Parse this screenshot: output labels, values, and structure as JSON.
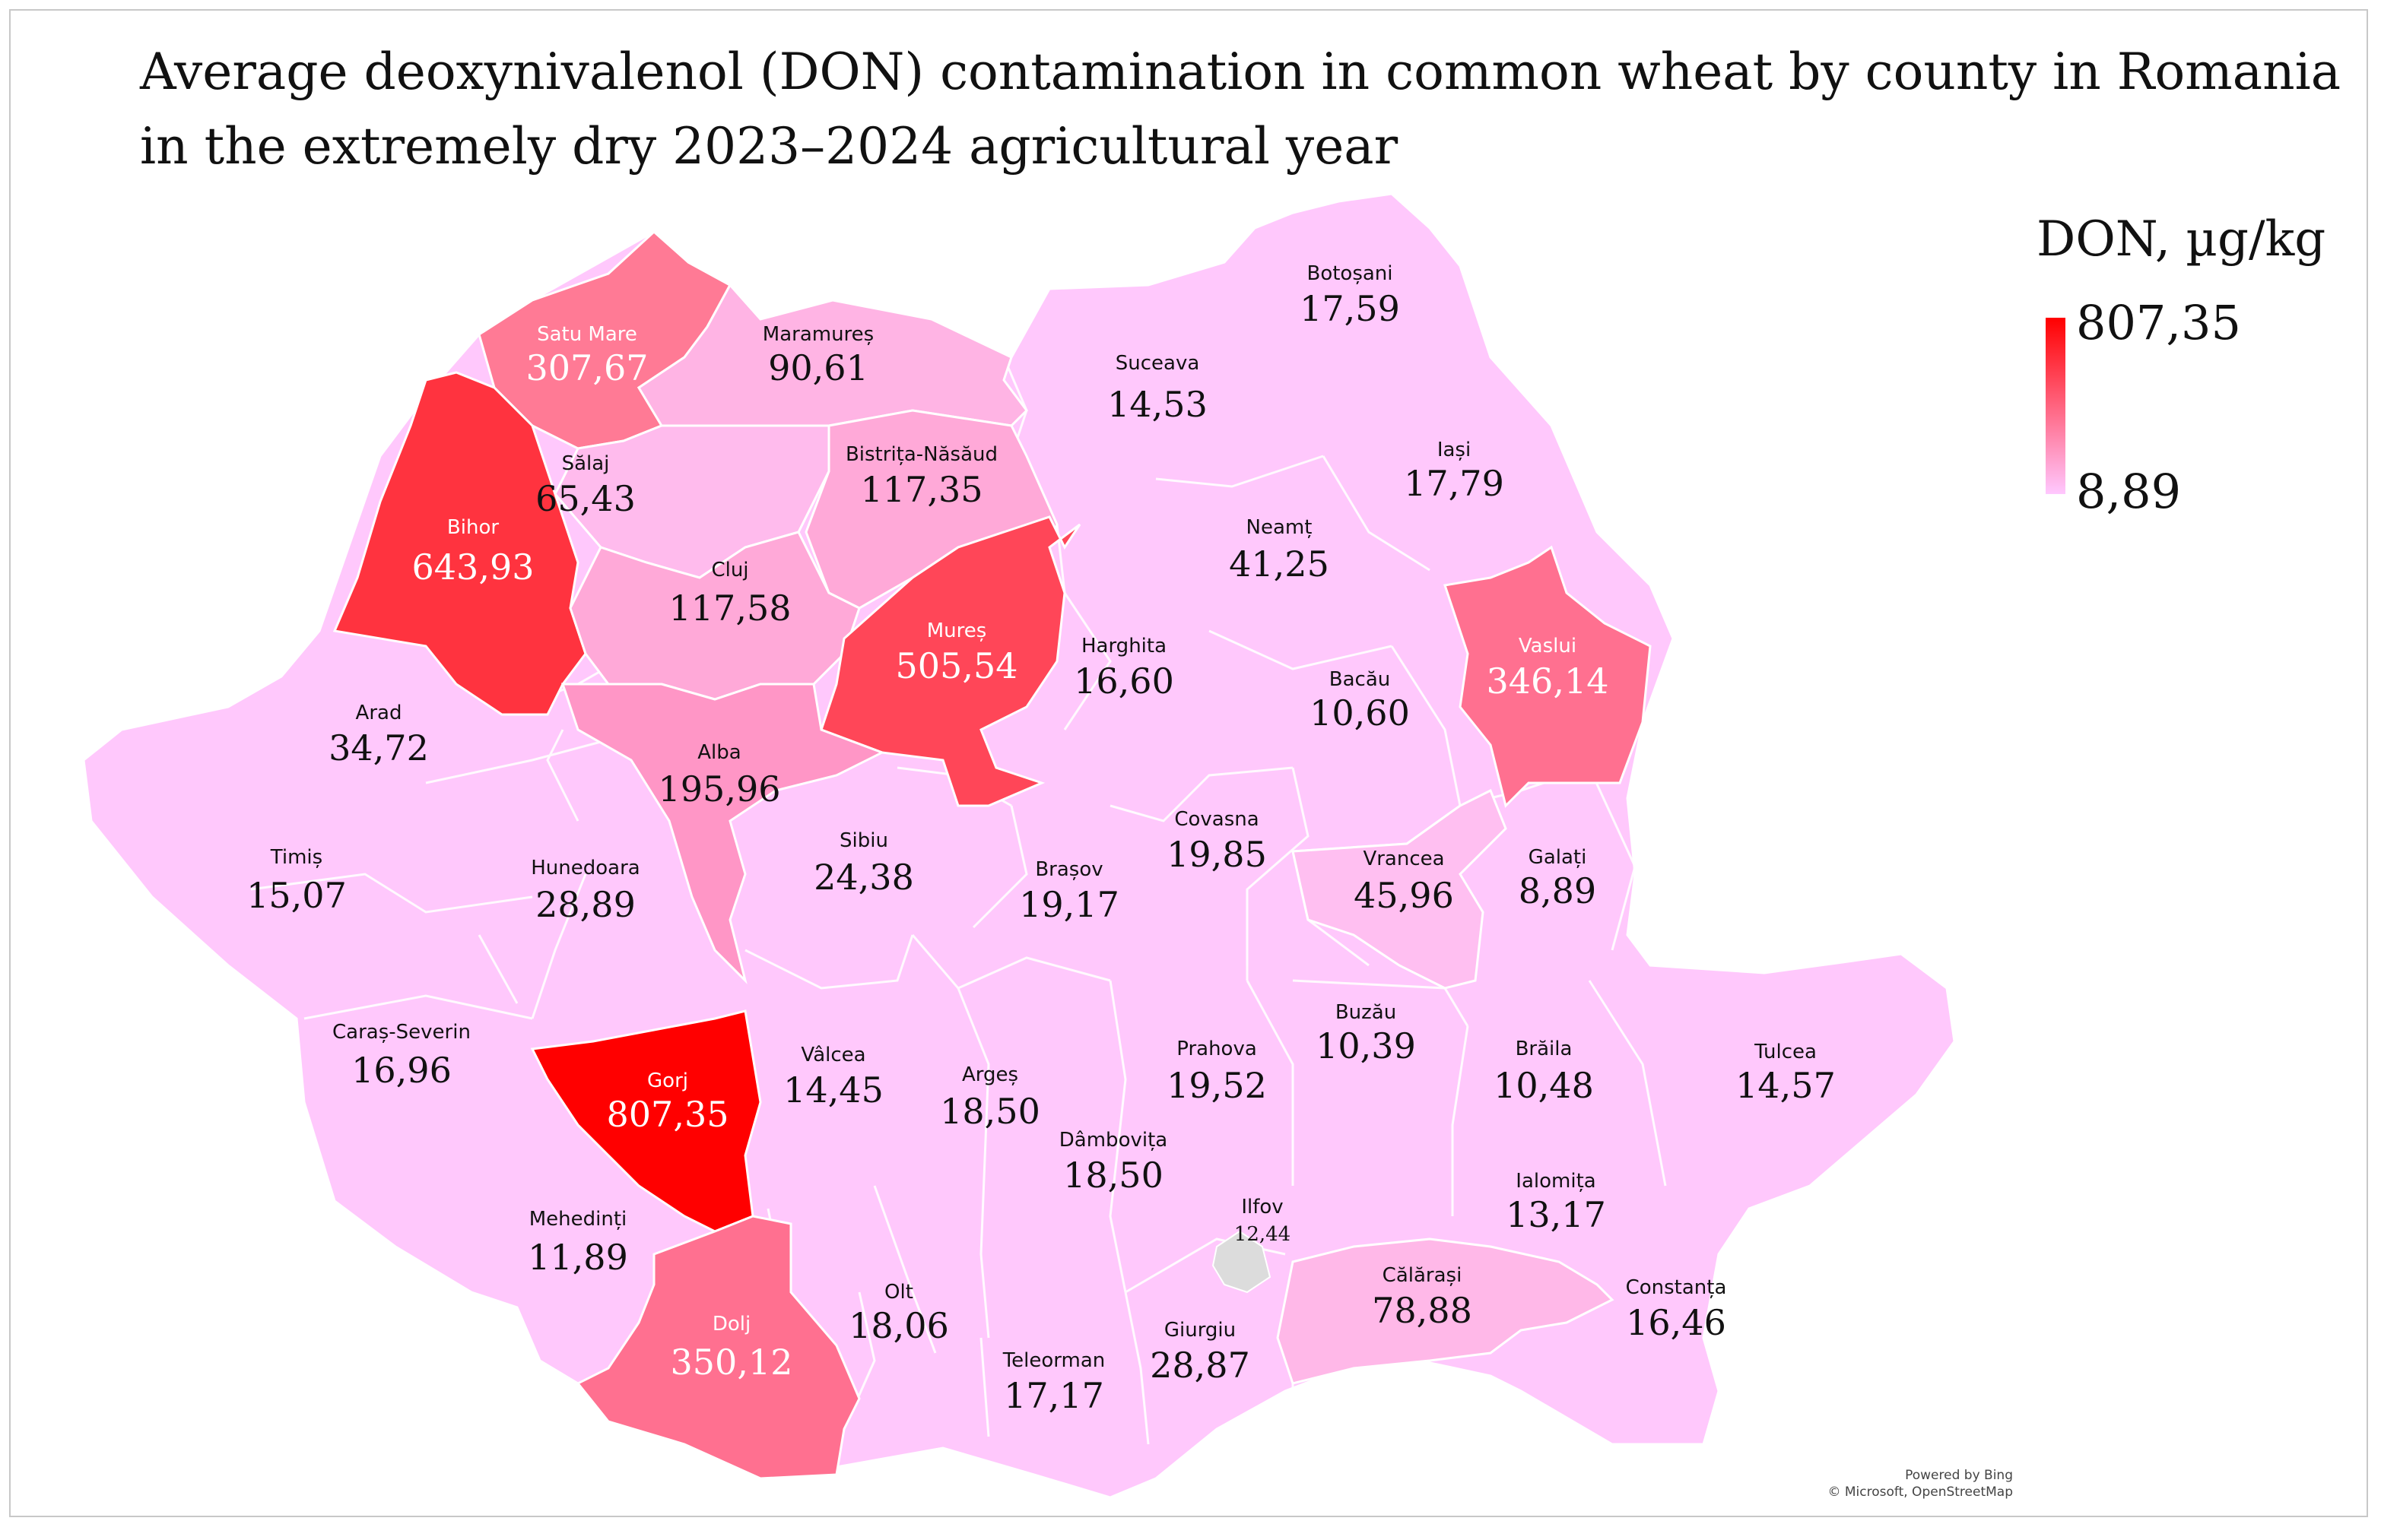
{
  "title": {
    "line1": "Average deoxynivalenol (DON) contamination in common wheat by county in Romania",
    "line2": "in the extremely dry 2023–2024 agricultural year"
  },
  "legend": {
    "title": "DON, µg/kg",
    "max": "807,35",
    "min": "8,89",
    "max_color": "#ff0000",
    "min_color": "#ffc8ff"
  },
  "credits": {
    "line1": "Powered by Bing",
    "line2": "© Microsoft, OpenStreetMap"
  },
  "colors": {
    "base": "#ffc8fc",
    "border": "#f0e0f0",
    "no_data": "#dcdcdc"
  },
  "counties": {
    "satu_mare": {
      "name": "Satu Mare",
      "value": "307,67",
      "color": "#ff7a95"
    },
    "maramures": {
      "name": "Maramureș",
      "value": "90,61",
      "color": "#ffb4e4"
    },
    "botosani": {
      "name": "Botoșani",
      "value": "17,59",
      "color": "#ffc6fa"
    },
    "suceava": {
      "name": "Suceava",
      "value": "14,53",
      "color": "#ffc7fb"
    },
    "salaj": {
      "name": "Sălaj",
      "value": "65,43",
      "color": "#ffbbed"
    },
    "bistrita": {
      "name": "Bistrița-Năsăud",
      "value": "117,35",
      "color": "#ffa9d8"
    },
    "iasi": {
      "name": "Iași",
      "value": "17,79",
      "color": "#ffc6fa"
    },
    "bihor": {
      "name": "Bihor",
      "value": "643,93",
      "color": "#ff333f"
    },
    "neamt": {
      "name": "Neamț",
      "value": "41,25",
      "color": "#ffc0f3"
    },
    "cluj": {
      "name": "Cluj",
      "value": "117,58",
      "color": "#ffa9d8"
    },
    "mures": {
      "name": "Mureș",
      "value": "505,54",
      "color": "#ff4658"
    },
    "harghita": {
      "name": "Harghita",
      "value": "16,60",
      "color": "#ffc6fa"
    },
    "vaslui": {
      "name": "Vaslui",
      "value": "346,14",
      "color": "#ff7090"
    },
    "bacau": {
      "name": "Bacău",
      "value": "10,60",
      "color": "#ffc7fb"
    },
    "arad": {
      "name": "Arad",
      "value": "34,72",
      "color": "#ffc2f5"
    },
    "alba": {
      "name": "Alba",
      "value": "195,96",
      "color": "#ff96c6"
    },
    "sibiu": {
      "name": "Sibiu",
      "value": "24,38",
      "color": "#ffc4f8"
    },
    "covasna": {
      "name": "Covasna",
      "value": "19,85",
      "color": "#ffc5f9"
    },
    "timis": {
      "name": "Timiș",
      "value": "15,07",
      "color": "#ffc7fb"
    },
    "hunedoara": {
      "name": "Hunedoara",
      "value": "28,89",
      "color": "#ffc3f6"
    },
    "brasov": {
      "name": "Brașov",
      "value": "19,17",
      "color": "#ffc5f9"
    },
    "vrancea": {
      "name": "Vrancea",
      "value": "45,96",
      "color": "#ffbff1"
    },
    "galati": {
      "name": "Galați",
      "value": "8,89",
      "color": "#ffc8fc"
    },
    "caras": {
      "name": "Caraș-Severin",
      "value": "16,96",
      "color": "#ffc6fa"
    },
    "gorj": {
      "name": "Gorj",
      "value": "807,35",
      "color": "#ff0000"
    },
    "valcea": {
      "name": "Vâlcea",
      "value": "14,45",
      "color": "#ffc7fb"
    },
    "arges": {
      "name": "Argeș",
      "value": "18,50",
      "color": "#ffc6fa"
    },
    "prahova": {
      "name": "Prahova",
      "value": "19,52",
      "color": "#ffc5f9"
    },
    "buzau": {
      "name": "Buzău",
      "value": "10,39",
      "color": "#ffc7fb"
    },
    "braila": {
      "name": "Brăila",
      "value": "10,48",
      "color": "#ffc7fb"
    },
    "tulcea": {
      "name": "Tulcea",
      "value": "14,57",
      "color": "#ffc7fb"
    },
    "dambovita": {
      "name": "Dâmbovița",
      "value": "18,50",
      "color": "#ffc6fa"
    },
    "ilfov": {
      "name": "Ilfov",
      "value": "12,44",
      "color": "#ffc7fb"
    },
    "ialomita": {
      "name": "Ialomița",
      "value": "13,17",
      "color": "#ffc7fb"
    },
    "mehedinti": {
      "name": "Mehedinți",
      "value": "11,89",
      "color": "#ffc7fb"
    },
    "olt": {
      "name": "Olt",
      "value": "18,06",
      "color": "#ffc6fa"
    },
    "dolj": {
      "name": "Dolj",
      "value": "350,12",
      "color": "#ff7090"
    },
    "calarasi": {
      "name": "Călărași",
      "value": "78,88",
      "color": "#ffb8e8"
    },
    "constanta": {
      "name": "Constanța",
      "value": "16,46",
      "color": "#ffc6fa"
    },
    "teleorman": {
      "name": "Teleorman",
      "value": "17,17",
      "color": "#ffc6fa"
    },
    "giurgiu": {
      "name": "Giurgiu",
      "value": "28,87",
      "color": "#ffc3f6"
    }
  }
}
